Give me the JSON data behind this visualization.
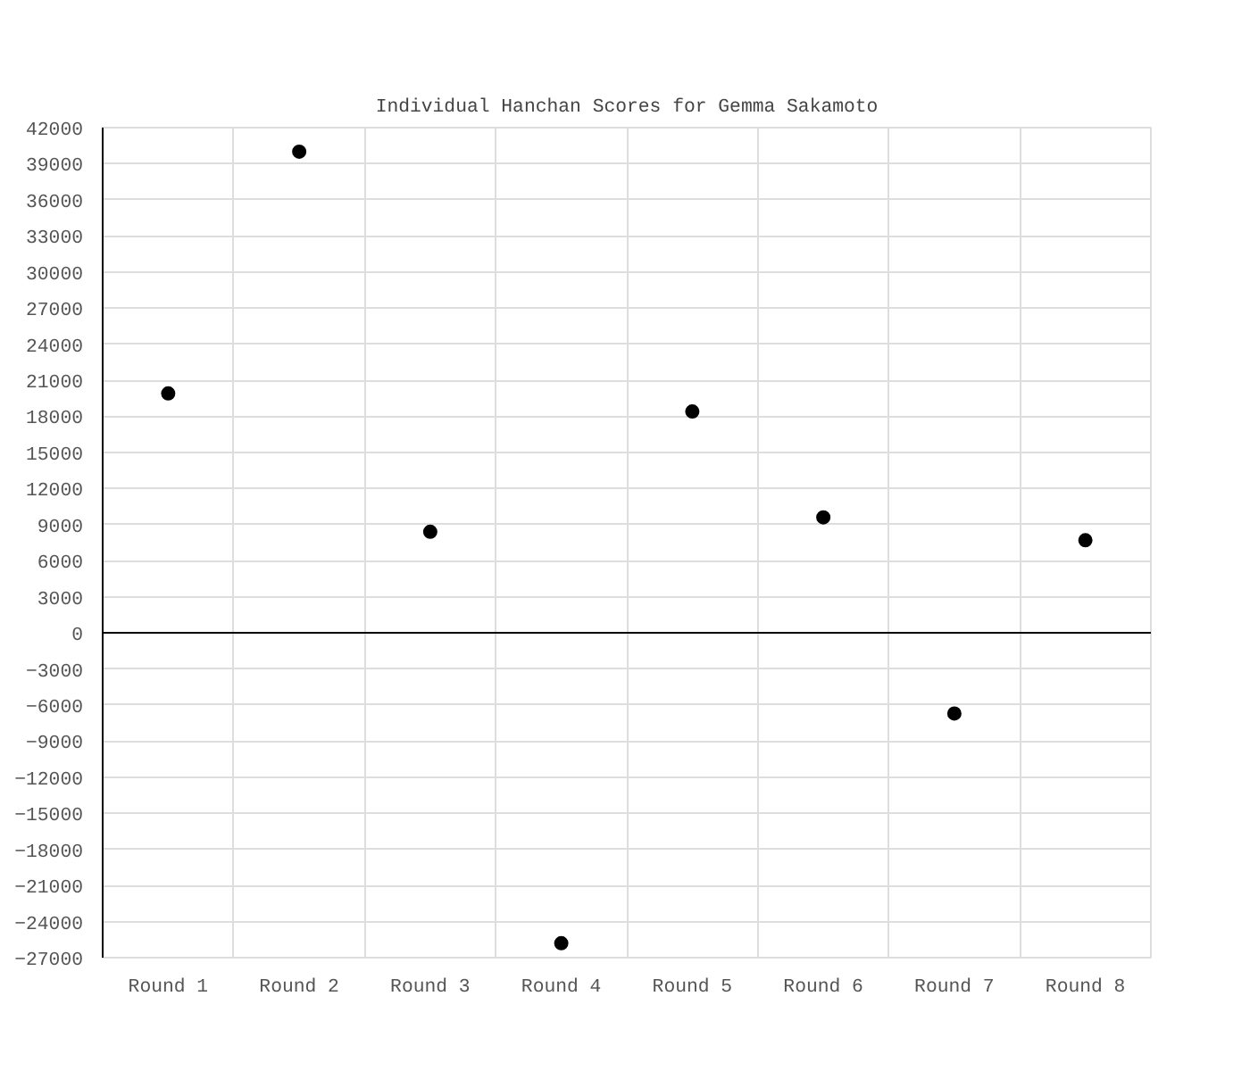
{
  "chart_data": {
    "type": "scatter",
    "title": "Individual Hanchan Scores for Gemma Sakamoto",
    "categories": [
      "Round 1",
      "Round 2",
      "Round 3",
      "Round 4",
      "Round 5",
      "Round 6",
      "Round 7",
      "Round 8"
    ],
    "series": [
      {
        "color": "#000000",
        "values": [
          19900,
          40000,
          8400,
          -25800,
          18400,
          9600,
          -6700,
          7700
        ]
      }
    ],
    "ylim": [
      -27000,
      42000
    ],
    "yticks": [
      -27000,
      -24000,
      -21000,
      -18000,
      -15000,
      -12000,
      -9000,
      -6000,
      -3000,
      0,
      3000,
      6000,
      9000,
      12000,
      15000,
      18000,
      21000,
      24000,
      27000,
      30000,
      33000,
      36000,
      39000,
      42000
    ],
    "ref_lines": [
      {
        "axis": "y",
        "value": 0,
        "color": "#000000"
      }
    ],
    "grid": true,
    "marker": "circle"
  }
}
